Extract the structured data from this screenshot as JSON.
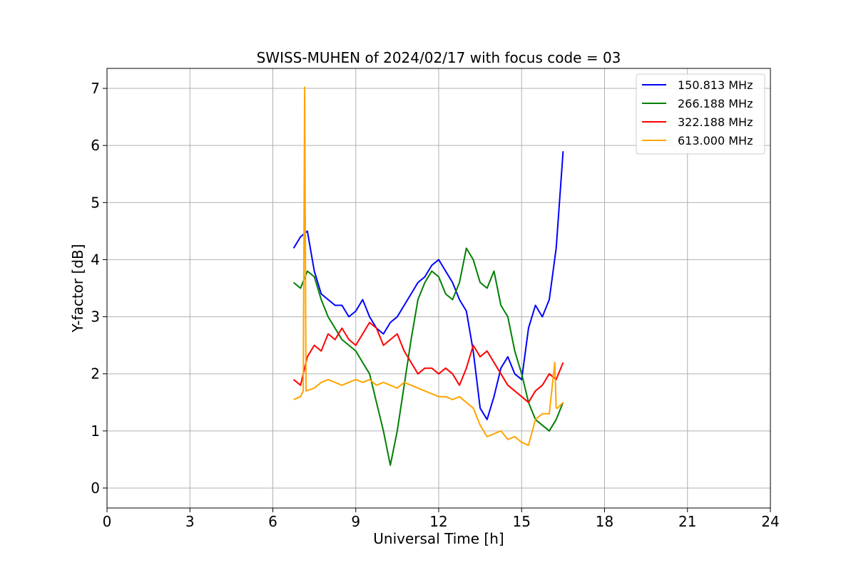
{
  "chart_data": {
    "type": "line",
    "title": "SWISS-MUHEN of 2024/02/17 with focus code = 03",
    "xlabel": "Universal Time [h]",
    "ylabel": "Y-factor [dB]",
    "xlim": [
      0,
      24
    ],
    "ylim": [
      -0.35,
      7.35
    ],
    "xticks": [
      0,
      3,
      6,
      9,
      12,
      15,
      18,
      21,
      24
    ],
    "yticks": [
      0,
      1,
      2,
      3,
      4,
      5,
      6,
      7
    ],
    "grid": true,
    "legend_position": "top-right",
    "series": [
      {
        "name": "150.813 MHz",
        "color": "#0000ff",
        "x": [
          6.75,
          7.0,
          7.25,
          7.5,
          7.75,
          8.0,
          8.25,
          8.5,
          8.75,
          9.0,
          9.25,
          9.5,
          9.75,
          10.0,
          10.25,
          10.5,
          10.75,
          11.0,
          11.25,
          11.5,
          11.75,
          12.0,
          12.25,
          12.5,
          12.75,
          13.0,
          13.25,
          13.5,
          13.75,
          14.0,
          14.25,
          14.5,
          14.75,
          15.0,
          15.25,
          15.5,
          15.75,
          16.0,
          16.25,
          16.5
        ],
        "y": [
          4.2,
          4.4,
          4.5,
          3.8,
          3.4,
          3.3,
          3.2,
          3.2,
          3.0,
          3.1,
          3.3,
          3.0,
          2.8,
          2.7,
          2.9,
          3.0,
          3.2,
          3.4,
          3.6,
          3.7,
          3.9,
          4.0,
          3.8,
          3.6,
          3.3,
          3.1,
          2.4,
          1.4,
          1.2,
          1.6,
          2.1,
          2.3,
          2.0,
          1.9,
          2.8,
          3.2,
          3.0,
          3.3,
          4.2,
          5.9
        ]
      },
      {
        "name": "266.188 MHz",
        "color": "#008000",
        "x": [
          6.75,
          7.0,
          7.25,
          7.5,
          7.75,
          8.0,
          8.25,
          8.5,
          8.75,
          9.0,
          9.25,
          9.5,
          9.75,
          10.0,
          10.25,
          10.5,
          10.75,
          11.0,
          11.25,
          11.5,
          11.75,
          12.0,
          12.25,
          12.5,
          12.75,
          13.0,
          13.25,
          13.5,
          13.75,
          14.0,
          14.25,
          14.5,
          14.75,
          15.0,
          15.25,
          15.5,
          15.75,
          16.0,
          16.25,
          16.5
        ],
        "y": [
          3.6,
          3.5,
          3.8,
          3.7,
          3.3,
          3.0,
          2.8,
          2.6,
          2.5,
          2.4,
          2.2,
          2.0,
          1.5,
          1.0,
          0.4,
          1.0,
          1.8,
          2.6,
          3.3,
          3.6,
          3.8,
          3.7,
          3.4,
          3.3,
          3.6,
          4.2,
          4.0,
          3.6,
          3.5,
          3.8,
          3.2,
          3.0,
          2.4,
          2.0,
          1.5,
          1.2,
          1.1,
          1.0,
          1.2,
          1.5
        ]
      },
      {
        "name": "322.188 MHz",
        "color": "#ff0000",
        "x": [
          6.75,
          7.0,
          7.25,
          7.5,
          7.75,
          8.0,
          8.25,
          8.5,
          8.75,
          9.0,
          9.25,
          9.5,
          9.75,
          10.0,
          10.25,
          10.5,
          10.75,
          11.0,
          11.25,
          11.5,
          11.75,
          12.0,
          12.25,
          12.5,
          12.75,
          13.0,
          13.25,
          13.5,
          13.75,
          14.0,
          14.25,
          14.5,
          14.75,
          15.0,
          15.25,
          15.5,
          15.75,
          16.0,
          16.25,
          16.5
        ],
        "y": [
          1.9,
          1.8,
          2.3,
          2.5,
          2.4,
          2.7,
          2.6,
          2.8,
          2.6,
          2.5,
          2.7,
          2.9,
          2.8,
          2.5,
          2.6,
          2.7,
          2.4,
          2.2,
          2.0,
          2.1,
          2.1,
          2.0,
          2.1,
          2.0,
          1.8,
          2.1,
          2.5,
          2.3,
          2.4,
          2.2,
          2.0,
          1.8,
          1.7,
          1.6,
          1.5,
          1.7,
          1.8,
          2.0,
          1.9,
          2.2
        ]
      },
      {
        "name": "613.000 MHz",
        "color": "#ffa500",
        "x": [
          6.75,
          7.0,
          7.1,
          7.15,
          7.2,
          7.5,
          7.75,
          8.0,
          8.25,
          8.5,
          8.75,
          9.0,
          9.25,
          9.5,
          9.75,
          10.0,
          10.25,
          10.5,
          10.75,
          11.0,
          11.25,
          11.5,
          11.75,
          12.0,
          12.25,
          12.5,
          12.75,
          13.0,
          13.25,
          13.5,
          13.75,
          14.0,
          14.25,
          14.5,
          14.75,
          15.0,
          15.25,
          15.5,
          15.75,
          16.0,
          16.2,
          16.25,
          16.3,
          16.5
        ],
        "y": [
          1.55,
          1.6,
          1.7,
          7.02,
          1.7,
          1.75,
          1.85,
          1.9,
          1.85,
          1.8,
          1.85,
          1.9,
          1.85,
          1.9,
          1.8,
          1.85,
          1.8,
          1.75,
          1.85,
          1.8,
          1.75,
          1.7,
          1.65,
          1.6,
          1.6,
          1.55,
          1.6,
          1.5,
          1.4,
          1.1,
          0.9,
          0.95,
          1.0,
          0.85,
          0.9,
          0.8,
          0.75,
          1.2,
          1.3,
          1.3,
          2.2,
          1.4,
          1.4,
          1.5
        ]
      }
    ]
  }
}
